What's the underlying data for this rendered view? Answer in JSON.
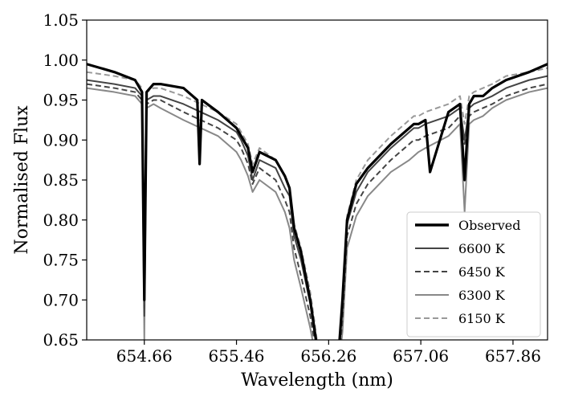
{
  "chart_data": {
    "type": "line",
    "title": "",
    "xlabel": "Wavelength (nm)",
    "ylabel": "Normalised Flux",
    "xlim": [
      654.16,
      658.16
    ],
    "ylim": [
      0.65,
      1.05
    ],
    "x_ticks": [
      654.66,
      655.46,
      656.26,
      657.06,
      657.86
    ],
    "x_tick_labels": [
      "654.66",
      "655.46",
      "656.26",
      "657.06",
      "657.86"
    ],
    "y_ticks": [
      0.65,
      0.7,
      0.75,
      0.8,
      0.85,
      0.9,
      0.95,
      1.0,
      1.05
    ],
    "y_tick_labels": [
      "0.65",
      "0.70",
      "0.75",
      "0.80",
      "0.85",
      "0.90",
      "0.95",
      "1.00",
      "1.05"
    ],
    "grid": false,
    "legend": "lower-right",
    "series": [
      {
        "name": "Observed",
        "color": "#000000",
        "style": "solid",
        "x": [
          654.16,
          654.4,
          654.58,
          654.64,
          654.66,
          654.68,
          654.74,
          654.8,
          655.0,
          655.12,
          655.14,
          655.16,
          655.3,
          655.46,
          655.5,
          655.56,
          655.6,
          655.66,
          655.8,
          655.88,
          655.92,
          655.96,
          656.02,
          656.1,
          656.14,
          656.18,
          656.34,
          656.38,
          656.42,
          656.5,
          656.6,
          656.8,
          656.96,
          657.0,
          657.04,
          657.1,
          657.14,
          657.3,
          657.4,
          657.44,
          657.48,
          657.52,
          657.6,
          657.68,
          657.8,
          658.0,
          658.16
        ],
        "y": [
          0.995,
          0.985,
          0.975,
          0.96,
          0.7,
          0.96,
          0.97,
          0.97,
          0.965,
          0.95,
          0.87,
          0.95,
          0.935,
          0.915,
          0.905,
          0.89,
          0.86,
          0.885,
          0.875,
          0.855,
          0.84,
          0.79,
          0.76,
          0.7,
          0.66,
          0.62,
          0.62,
          0.7,
          0.8,
          0.845,
          0.865,
          0.895,
          0.915,
          0.92,
          0.92,
          0.925,
          0.86,
          0.935,
          0.945,
          0.85,
          0.945,
          0.955,
          0.955,
          0.965,
          0.975,
          0.985,
          0.995
        ]
      },
      {
        "name": "6600 K",
        "color": "#444444",
        "style": "solid",
        "x": [
          654.16,
          654.4,
          654.58,
          654.64,
          654.66,
          654.68,
          654.74,
          654.8,
          655.0,
          655.3,
          655.46,
          655.5,
          655.56,
          655.6,
          655.66,
          655.8,
          655.88,
          655.92,
          655.96,
          656.02,
          656.1,
          656.14,
          656.18,
          656.34,
          656.38,
          656.42,
          656.5,
          656.6,
          656.8,
          656.96,
          657.0,
          657.04,
          657.1,
          657.3,
          657.4,
          657.44,
          657.48,
          657.52,
          657.6,
          657.68,
          657.8,
          658.0,
          658.16
        ],
        "y": [
          0.975,
          0.97,
          0.965,
          0.955,
          0.68,
          0.95,
          0.955,
          0.955,
          0.945,
          0.925,
          0.91,
          0.9,
          0.88,
          0.85,
          0.875,
          0.865,
          0.84,
          0.83,
          0.78,
          0.75,
          0.695,
          0.655,
          0.615,
          0.615,
          0.69,
          0.795,
          0.835,
          0.86,
          0.89,
          0.91,
          0.915,
          0.915,
          0.92,
          0.93,
          0.94,
          0.9,
          0.94,
          0.945,
          0.95,
          0.955,
          0.965,
          0.975,
          0.98
        ]
      },
      {
        "name": "6450 K",
        "color": "#444444",
        "style": "dashed",
        "x": [
          654.16,
          654.4,
          654.58,
          654.64,
          654.66,
          654.68,
          654.74,
          654.8,
          655.0,
          655.3,
          655.46,
          655.5,
          655.56,
          655.6,
          655.66,
          655.8,
          655.88,
          655.92,
          655.96,
          656.02,
          656.1,
          656.14,
          656.18,
          656.34,
          656.38,
          656.42,
          656.5,
          656.6,
          656.8,
          656.96,
          657.0,
          657.04,
          657.1,
          657.3,
          657.4,
          657.44,
          657.48,
          657.52,
          657.6,
          657.68,
          657.8,
          658.0,
          658.16
        ],
        "y": [
          0.97,
          0.965,
          0.96,
          0.95,
          0.69,
          0.945,
          0.95,
          0.95,
          0.935,
          0.915,
          0.9,
          0.89,
          0.87,
          0.845,
          0.865,
          0.85,
          0.825,
          0.81,
          0.765,
          0.73,
          0.68,
          0.645,
          0.61,
          0.61,
          0.675,
          0.78,
          0.82,
          0.845,
          0.875,
          0.895,
          0.9,
          0.9,
          0.905,
          0.915,
          0.93,
          0.895,
          0.93,
          0.935,
          0.94,
          0.945,
          0.955,
          0.965,
          0.97
        ]
      },
      {
        "name": "6300 K",
        "color": "#888888",
        "style": "solid",
        "x": [
          654.16,
          654.4,
          654.58,
          654.64,
          654.66,
          654.68,
          654.74,
          654.8,
          655.0,
          655.3,
          655.46,
          655.5,
          655.56,
          655.6,
          655.66,
          655.8,
          655.88,
          655.92,
          655.96,
          656.02,
          656.1,
          656.14,
          656.18,
          656.34,
          656.38,
          656.42,
          656.5,
          656.6,
          656.8,
          656.96,
          657.0,
          657.04,
          657.1,
          657.3,
          657.4,
          657.44,
          657.48,
          657.52,
          657.6,
          657.68,
          657.8,
          658.0,
          658.16
        ],
        "y": [
          0.965,
          0.96,
          0.955,
          0.945,
          0.65,
          0.94,
          0.945,
          0.94,
          0.925,
          0.905,
          0.885,
          0.875,
          0.855,
          0.835,
          0.85,
          0.835,
          0.81,
          0.79,
          0.75,
          0.715,
          0.665,
          0.635,
          0.605,
          0.605,
          0.66,
          0.765,
          0.805,
          0.83,
          0.86,
          0.875,
          0.88,
          0.885,
          0.89,
          0.905,
          0.92,
          0.81,
          0.92,
          0.925,
          0.93,
          0.94,
          0.95,
          0.96,
          0.965
        ]
      },
      {
        "name": "6150 K",
        "color": "#999999",
        "style": "dashed",
        "x": [
          654.16,
          654.4,
          654.58,
          654.64,
          654.66,
          654.68,
          654.74,
          654.8,
          655.0,
          655.3,
          655.46,
          655.5,
          655.56,
          655.6,
          655.66,
          655.8,
          655.88,
          655.92,
          655.96,
          656.02,
          656.1,
          656.14,
          656.18,
          656.34,
          656.38,
          656.42,
          656.5,
          656.6,
          656.8,
          656.96,
          657.0,
          657.04,
          657.1,
          657.3,
          657.4,
          657.44,
          657.48,
          657.52,
          657.6,
          657.68,
          657.8,
          658.0,
          658.16
        ],
        "y": [
          0.985,
          0.98,
          0.975,
          0.965,
          0.7,
          0.96,
          0.965,
          0.965,
          0.955,
          0.935,
          0.92,
          0.91,
          0.895,
          0.87,
          0.89,
          0.875,
          0.855,
          0.84,
          0.795,
          0.765,
          0.71,
          0.67,
          0.625,
          0.625,
          0.7,
          0.805,
          0.85,
          0.875,
          0.905,
          0.925,
          0.93,
          0.93,
          0.935,
          0.945,
          0.955,
          0.92,
          0.955,
          0.96,
          0.965,
          0.97,
          0.98,
          0.985,
          0.99
        ]
      }
    ]
  }
}
